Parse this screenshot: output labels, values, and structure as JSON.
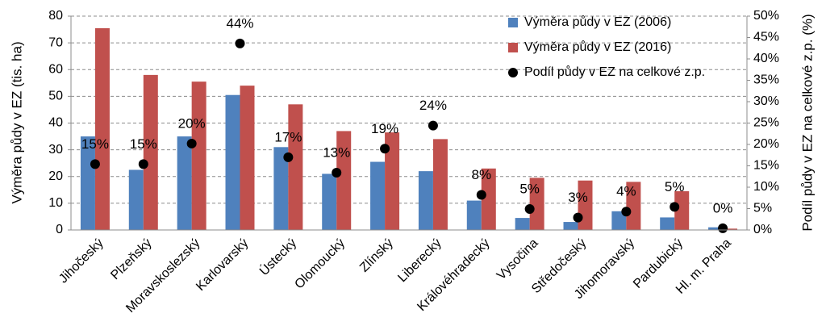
{
  "chart_data": {
    "type": "bar",
    "categories": [
      "Jihočeský",
      "Plzeňský",
      "Moravskoslezský",
      "Karlovarský",
      "Ústecký",
      "Olomoucký",
      "Zlínský",
      "Liberecký",
      "Královéhradecký",
      "Vysočina",
      "Středočeský",
      "Jihomoravský",
      "Pardubický",
      "Hl. m. Praha"
    ],
    "series": [
      {
        "name": "Výměra půdy v EZ (2006)",
        "type": "bar",
        "color": "#4f81bd",
        "values": [
          35,
          22.5,
          35,
          50.5,
          31,
          21,
          25.5,
          22,
          11,
          4.5,
          3,
          7,
          4.7,
          1
        ]
      },
      {
        "name": "Výměra půdy v EZ (2016)",
        "type": "bar",
        "color": "#c0504d",
        "values": [
          75.5,
          58,
          55.5,
          54,
          47,
          37,
          36.5,
          34,
          23,
          19.5,
          18.5,
          18,
          14.5,
          0.5
        ]
      },
      {
        "name": "Podíl půdy v EZ na celkové z.p.",
        "type": "scatter",
        "axis": "y2",
        "color": "#000000",
        "values": [
          15.4,
          15.4,
          20.2,
          43.6,
          17.0,
          13.4,
          19.0,
          24.4,
          8.2,
          4.9,
          2.9,
          4.3,
          5.4,
          0.4
        ],
        "value_labels": [
          "15%",
          "15%",
          "20%",
          "44%",
          "17%",
          "13%",
          "19%",
          "24%",
          "8%",
          "5%",
          "3%",
          "4%",
          "5%",
          "0%"
        ]
      }
    ],
    "y_label": "Výměra půdy v EZ (tis. ha)",
    "y2_label": "Podíl půdy v EZ na celkové z.p. (%)",
    "ylim": [
      0,
      80
    ],
    "yticks": [
      0,
      10,
      20,
      30,
      40,
      50,
      60,
      70,
      80
    ],
    "y2lim": [
      0,
      50
    ],
    "y2ticks": [
      {
        "value": 0,
        "label": "0%"
      },
      {
        "value": 5,
        "label": "5%"
      },
      {
        "value": 10,
        "label": "10%"
      },
      {
        "value": 15,
        "label": "15%"
      },
      {
        "value": 20,
        "label": "20%"
      },
      {
        "value": 25,
        "label": "25%"
      },
      {
        "value": 30,
        "label": "30%"
      },
      {
        "value": 35,
        "label": "35%"
      },
      {
        "value": 40,
        "label": "40%"
      },
      {
        "value": 45,
        "label": "45%"
      },
      {
        "value": 50,
        "label": "50%"
      }
    ],
    "grid": true,
    "legend": "top"
  }
}
